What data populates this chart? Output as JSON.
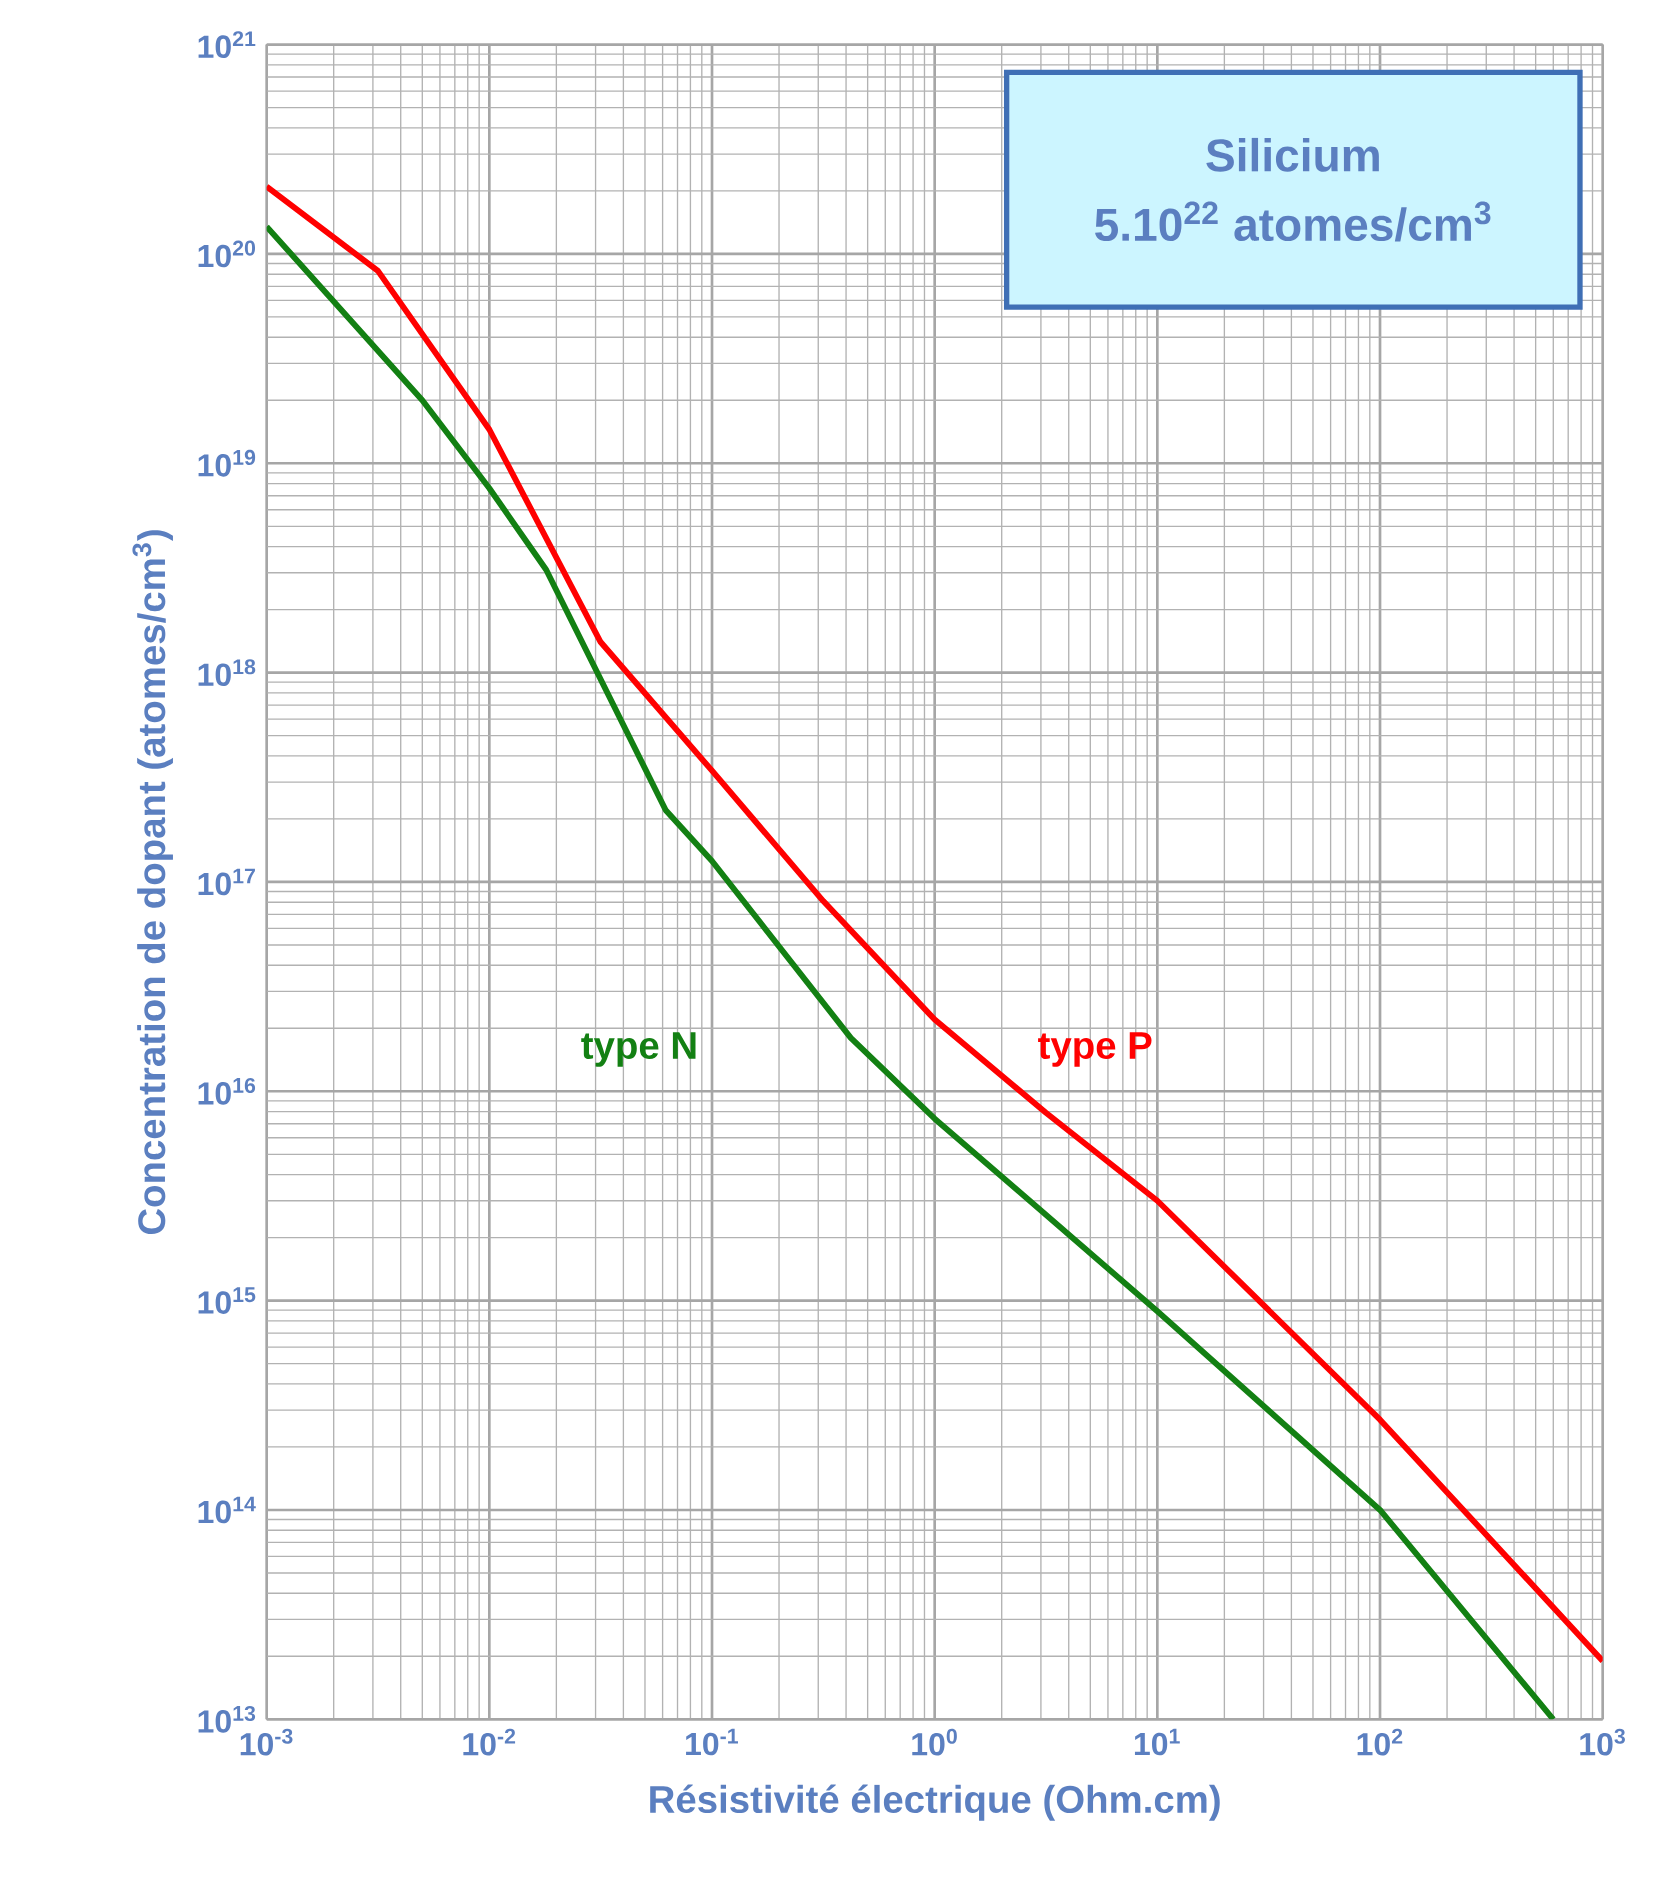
{
  "chart_data": {
    "type": "line",
    "title": "Silicium",
    "subtitle": "5.10$^{22}$ atomes/cm$^{3}$",
    "xlabel": "Résistivité électrique (Ohm.cm)",
    "ylabel": "Concentration de dopant (atomes/cm$^{3}$)",
    "log": "xy",
    "grid": true,
    "xlim": [
      0.001,
      1000
    ],
    "ylim": [
      10000000000000.0,
      1e+21
    ],
    "xticks": [
      {
        "value": 0.001,
        "label": "10$^{-3}$"
      },
      {
        "value": 0.01,
        "label": "10$^{-2}$"
      },
      {
        "value": 0.1,
        "label": "10$^{-1}$"
      },
      {
        "value": 1,
        "label": "10$^{0}$"
      },
      {
        "value": 10,
        "label": "10$^{1}$"
      },
      {
        "value": 100,
        "label": "10$^{2}$"
      },
      {
        "value": 1000,
        "label": "10$^{3}$"
      }
    ],
    "yticks": [
      {
        "value": 10000000000000.0,
        "label": "10$^{13}$"
      },
      {
        "value": 100000000000000.0,
        "label": "10$^{14}$"
      },
      {
        "value": 1000000000000000.0,
        "label": "10$^{15}$"
      },
      {
        "value": 1e+16,
        "label": "10$^{16}$"
      },
      {
        "value": 1e+17,
        "label": "10$^{17}$"
      },
      {
        "value": 1e+18,
        "label": "10$^{18}$"
      },
      {
        "value": 1e+19,
        "label": "10$^{19}$"
      },
      {
        "value": 1e+20,
        "label": "10$^{20}$"
      },
      {
        "value": 1e+21,
        "label": "10$^{21}$"
      }
    ],
    "series": [
      {
        "name": "type N",
        "color": "#138013",
        "x": [
          0.001,
          0.005,
          0.01,
          0.018,
          0.062,
          0.1,
          0.42,
          1,
          10,
          100,
          600
        ],
        "values": [
          1.35e+20,
          2e+19,
          7.6e+18,
          3.1e+18,
          2.2e+17,
          1.26e+17,
          1.8e+16,
          7400000000000000.0,
          890000000000000.0,
          100000000000000.0,
          10000000000000.0
        ]
      },
      {
        "name": "type P",
        "color": "#ff0000",
        "x": [
          0.001,
          0.00316,
          0.01,
          0.0316,
          0.1,
          0.316,
          1,
          3.16,
          10,
          100,
          1000
        ],
        "values": [
          2.1e+20,
          8.3e+19,
          1.45e+19,
          1.4e+18,
          3.4e+17,
          8.1e+16,
          2.2e+16,
          7900000000000000.0,
          3000000000000000.0,
          270000000000000.0,
          19000000000000.0
        ]
      }
    ]
  }
}
